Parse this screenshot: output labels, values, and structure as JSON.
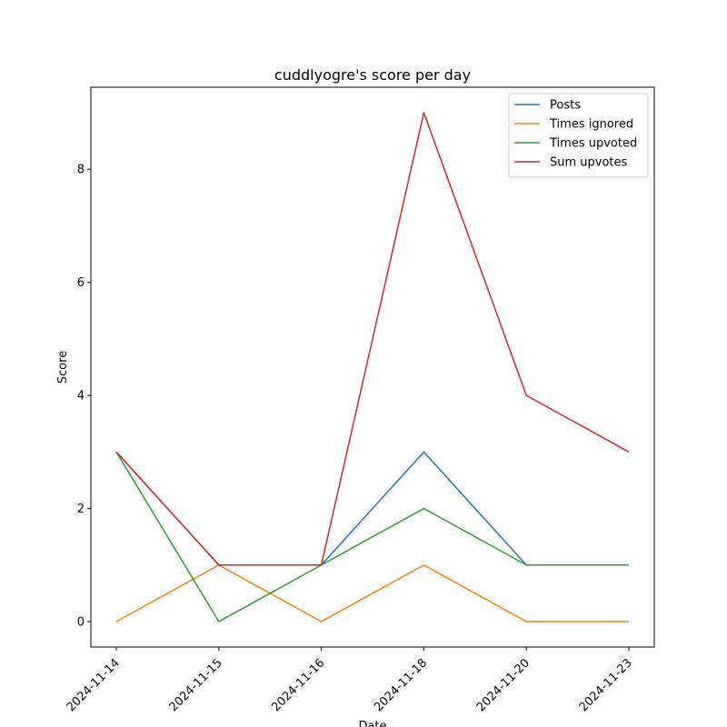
{
  "chart_data": {
    "type": "line",
    "title": "cuddlyogre's score per day",
    "xlabel": "Date",
    "ylabel": "Score",
    "categories": [
      "2024-11-14",
      "2024-11-15",
      "2024-11-16",
      "2024-11-18",
      "2024-11-20",
      "2024-11-23"
    ],
    "ylim": [
      -0.45,
      9.45
    ],
    "yticks": [
      0,
      2,
      4,
      6,
      8
    ],
    "grid": false,
    "legend_position": "top-right",
    "series": [
      {
        "name": "Posts",
        "color": "#1f77b4",
        "values": [
          3,
          1,
          1,
          3,
          1,
          1
        ]
      },
      {
        "name": "Times ignored",
        "color": "#ff7f0e",
        "values": [
          0,
          1,
          0,
          1,
          0,
          0
        ]
      },
      {
        "name": "Times upvoted",
        "color": "#2ca02c",
        "values": [
          3,
          0,
          1,
          2,
          1,
          1
        ]
      },
      {
        "name": "Sum upvotes",
        "color": "#d62728",
        "values": [
          3,
          1,
          1,
          9,
          4,
          3
        ]
      }
    ]
  }
}
